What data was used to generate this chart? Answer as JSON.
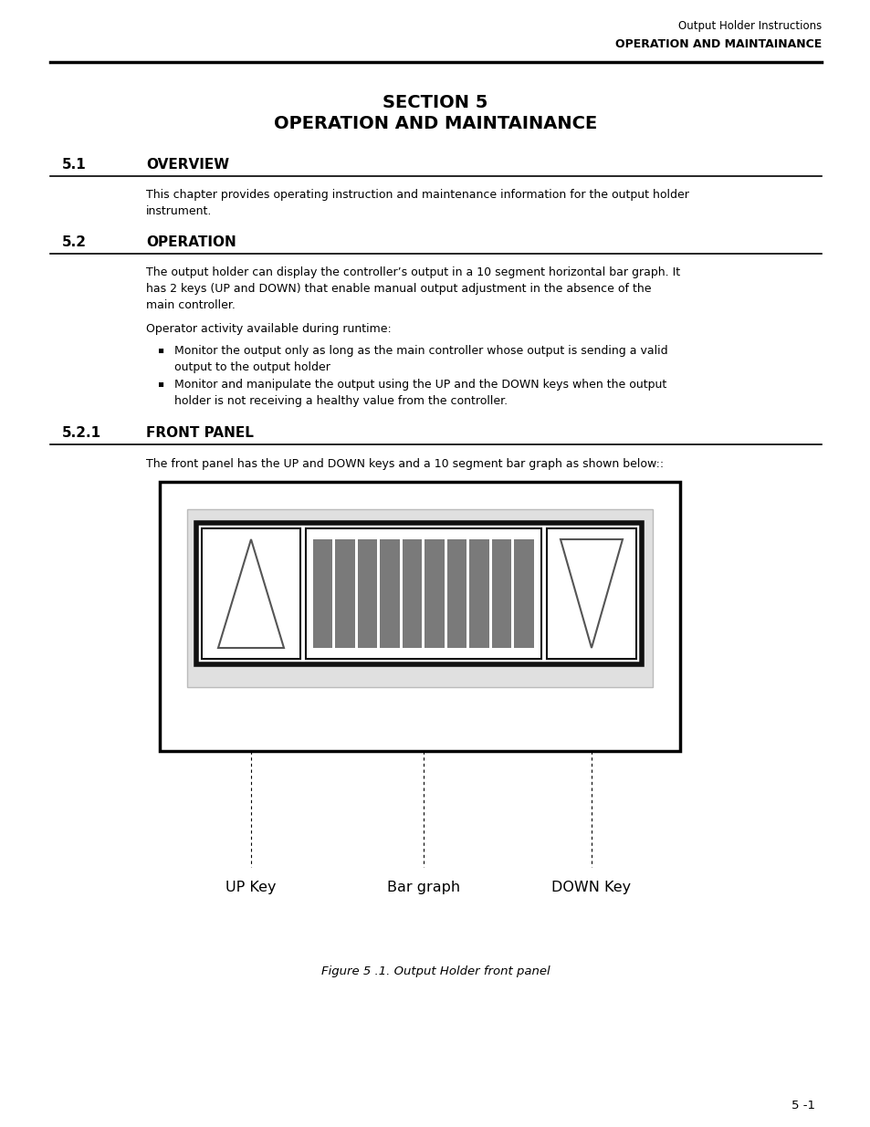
{
  "bg_color": "#ffffff",
  "header_right_line1": "Output Holder Instructions",
  "header_right_line2": "OPERATION AND MAINTAINANCE",
  "section_title_line1": "SECTION 5",
  "section_title_line2": "OPERATION AND MAINTAINANCE",
  "s51_num": "5.1",
  "s51_title": "OVERVIEW",
  "s51_body": "This chapter provides operating instruction and maintenance information for the output holder\ninstrument.",
  "s52_num": "5.2",
  "s52_title": "OPERATION",
  "s52_body1": "The output holder can display the controller’s output in a 10 segment horizontal bar graph. It\nhas 2 keys (UP and DOWN) that enable manual output adjustment in the absence of the\nmain controller.",
  "s52_body2": "Operator activity available during runtime:",
  "s52_bullet1": "Monitor the output only as long as the main controller whose output is sending a valid\noutput to the output holder",
  "s52_bullet2": "Monitor and manipulate the output using the UP and the DOWN keys when the output\nholder is not receiving a healthy value from the controller.",
  "s521_num": "5.2.1",
  "s521_title": "FRONT PANEL",
  "s521_body": "The front panel has the UP and DOWN keys and a 10 segment bar graph as shown below::",
  "fig_caption": "Figure 5 .1. Output Holder front panel",
  "label_up": "UP Key",
  "label_bar": "Bar graph",
  "label_down": "DOWN Key",
  "page_num": "5 -1",
  "bar_color": "#7a7a7a",
  "outer_box_color": "#000000"
}
